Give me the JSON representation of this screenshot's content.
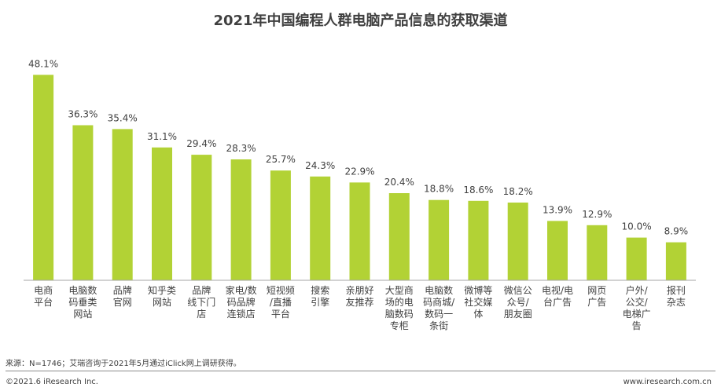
{
  "footer": {
    "source": "来源：N=1746；艾瑞咨询于2021年5月通过iClick网上调研获得。",
    "copyright": "©2021.6 iResearch Inc.",
    "website": "www.iresearch.com.cn"
  },
  "colors": {
    "bar": "#b2d235",
    "axis": "#a6a6a6",
    "text": "#404040"
  },
  "chart_data": {
    "type": "bar",
    "title": "2021年中国编程人群电脑产品信息的获取渠道",
    "xlabel": "",
    "ylabel": "",
    "ylim": [
      0,
      50
    ],
    "unit": "%",
    "grid": false,
    "categories": [
      [
        "电商",
        "平台"
      ],
      [
        "电脑数",
        "码垂类",
        "网站"
      ],
      [
        "品牌",
        "官网"
      ],
      [
        "知乎类",
        "网站"
      ],
      [
        "品牌",
        "线下门",
        "店"
      ],
      [
        "家电/数",
        "码品牌",
        "连锁店"
      ],
      [
        "短视频",
        "/直播",
        "平台"
      ],
      [
        "搜索",
        "引擎"
      ],
      [
        "亲朋好",
        "友推荐"
      ],
      [
        "大型商",
        "场的电",
        "脑数码",
        "专柜"
      ],
      [
        "电脑数",
        "码商城/",
        "数码一",
        "条街"
      ],
      [
        "微博等",
        "社交媒",
        "体"
      ],
      [
        "微信公",
        "众号/",
        "朋友圈"
      ],
      [
        "电视/电",
        "台广告"
      ],
      [
        "网页",
        "广告"
      ],
      [
        "户外/",
        "公交/",
        "电梯广",
        "告"
      ],
      [
        "报刊",
        "杂志"
      ]
    ],
    "values": [
      48.1,
      36.3,
      35.4,
      31.1,
      29.4,
      28.3,
      25.7,
      24.3,
      22.9,
      20.4,
      18.8,
      18.6,
      18.2,
      13.9,
      12.9,
      10.0,
      8.9
    ],
    "value_labels": [
      "48.1%",
      "36.3%",
      "35.4%",
      "31.1%",
      "29.4%",
      "28.3%",
      "25.7%",
      "24.3%",
      "22.9%",
      "20.4%",
      "18.8%",
      "18.6%",
      "18.2%",
      "13.9%",
      "12.9%",
      "10.0%",
      "8.9%"
    ]
  }
}
